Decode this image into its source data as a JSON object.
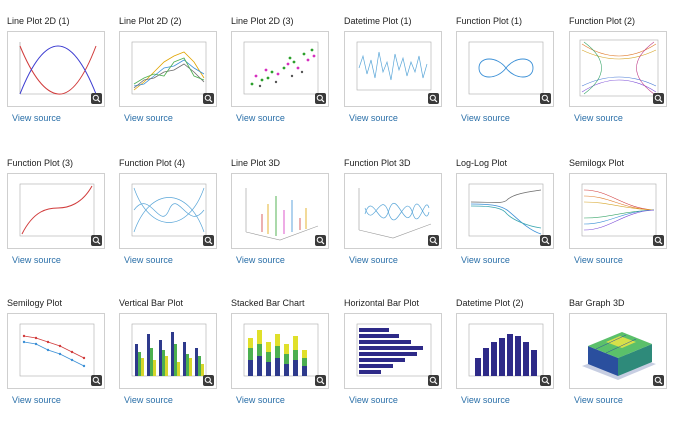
{
  "gallery": {
    "items": [
      {
        "title": "Line Plot 2D (1)",
        "link": "View source",
        "thumb_icon": "line-plot-2d-1-icon"
      },
      {
        "title": "Line Plot 2D (2)",
        "link": "View source",
        "thumb_icon": "line-plot-2d-2-icon"
      },
      {
        "title": "Line Plot 2D (3)",
        "link": "View source",
        "thumb_icon": "line-plot-2d-3-icon"
      },
      {
        "title": "Datetime Plot (1)",
        "link": "View source",
        "thumb_icon": "datetime-plot-1-icon"
      },
      {
        "title": "Function Plot (1)",
        "link": "View source",
        "thumb_icon": "function-plot-1-icon"
      },
      {
        "title": "Function Plot (2)",
        "link": "View source",
        "thumb_icon": "function-plot-2-icon"
      },
      {
        "title": "Function Plot (3)",
        "link": "View source",
        "thumb_icon": "function-plot-3-icon"
      },
      {
        "title": "Function Plot (4)",
        "link": "View source",
        "thumb_icon": "function-plot-4-icon"
      },
      {
        "title": "Line Plot 3D",
        "link": "View source",
        "thumb_icon": "line-plot-3d-icon"
      },
      {
        "title": "Function Plot 3D",
        "link": "View source",
        "thumb_icon": "function-plot-3d-icon"
      },
      {
        "title": "Log-Log Plot",
        "link": "View source",
        "thumb_icon": "log-log-plot-icon"
      },
      {
        "title": "Semilogx Plot",
        "link": "View source",
        "thumb_icon": "semilogx-plot-icon"
      },
      {
        "title": "Semilogy Plot",
        "link": "View source",
        "thumb_icon": "semilogy-plot-icon"
      },
      {
        "title": "Vertical Bar Plot",
        "link": "View source",
        "thumb_icon": "vertical-bar-plot-icon"
      },
      {
        "title": "Stacked Bar Chart",
        "link": "View source",
        "thumb_icon": "stacked-bar-chart-icon"
      },
      {
        "title": "Horizontal Bar Plot",
        "link": "View source",
        "thumb_icon": "horizontal-bar-plot-icon"
      },
      {
        "title": "Datetime Plot (2)",
        "link": "View source",
        "thumb_icon": "datetime-plot-2-icon"
      },
      {
        "title": "Bar Graph 3D",
        "link": "View source",
        "thumb_icon": "bar-graph-3d-icon"
      }
    ]
  },
  "colors": {
    "link": "#2a6fa8",
    "zoom_bg": "#3a3a3a"
  }
}
